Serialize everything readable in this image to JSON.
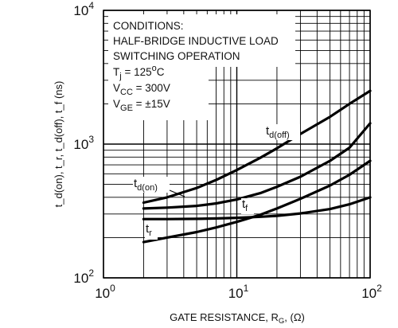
{
  "chart_data": {
    "type": "line",
    "x_scale": "log",
    "y_scale": "log",
    "xlim": [
      1,
      100
    ],
    "ylim": [
      100,
      10000
    ],
    "x_ticks": [
      {
        "value": 1,
        "base": "10",
        "exp": "0"
      },
      {
        "value": 10,
        "base": "10",
        "exp": "1"
      },
      {
        "value": 100,
        "base": "10",
        "exp": "2"
      }
    ],
    "y_ticks": [
      {
        "value": 100,
        "base": "10",
        "exp": "2"
      },
      {
        "value": 1000,
        "base": "10",
        "exp": "3"
      },
      {
        "value": 10000,
        "base": "10",
        "exp": "4"
      }
    ],
    "xlabel": {
      "main": "GATE RESISTANCE, R",
      "sub": "G",
      "tail": ", (Ω)"
    },
    "ylabel": "t_d(on), t_r, t_d(off), t_f (ns)",
    "grid": true,
    "conditions": {
      "title": "CONDITIONS:",
      "line1": "HALF-BRIDGE INDUCTIVE LOAD",
      "line2": "SWITCHING OPERATION",
      "tj": {
        "main": "T",
        "sub": "j",
        "eq": " = 125",
        "sup": "o",
        "unit": "C"
      },
      "vcc": {
        "main": "V",
        "sub": "CC",
        "eq": " = 300V"
      },
      "vge": {
        "main": "V",
        "sub": "GE",
        "eq": " = ±15V"
      }
    },
    "series": [
      {
        "name": "t_d(off)",
        "label_main": "t",
        "label_sub": "d(off)",
        "x": [
          2,
          3,
          5,
          7,
          10,
          15,
          20,
          30,
          50,
          70,
          100
        ],
        "y": [
          365,
          400,
          470,
          540,
          640,
          790,
          930,
          1190,
          1600,
          2000,
          2500
        ]
      },
      {
        "name": "t_f",
        "label_main": "t",
        "label_sub": "f",
        "x": [
          2,
          3,
          5,
          7,
          10,
          15,
          20,
          30,
          50,
          70,
          100
        ],
        "y": [
          275,
          275,
          276,
          278,
          281,
          286,
          291,
          303,
          327,
          355,
          400
        ]
      },
      {
        "name": "t_d(on)",
        "label_main": "t",
        "label_sub": "d(on)",
        "x": [
          2,
          3,
          5,
          7,
          10,
          15,
          20,
          30,
          50,
          70,
          100
        ],
        "y": [
          330,
          335,
          345,
          360,
          385,
          430,
          480,
          570,
          750,
          940,
          1430
        ]
      },
      {
        "name": "t_r",
        "label_main": "t",
        "label_sub": "r",
        "x": [
          2,
          3,
          5,
          7,
          10,
          15,
          20,
          30,
          50,
          70,
          100
        ],
        "y": [
          185,
          200,
          220,
          238,
          262,
          296,
          330,
          390,
          490,
          590,
          750
        ]
      }
    ]
  }
}
